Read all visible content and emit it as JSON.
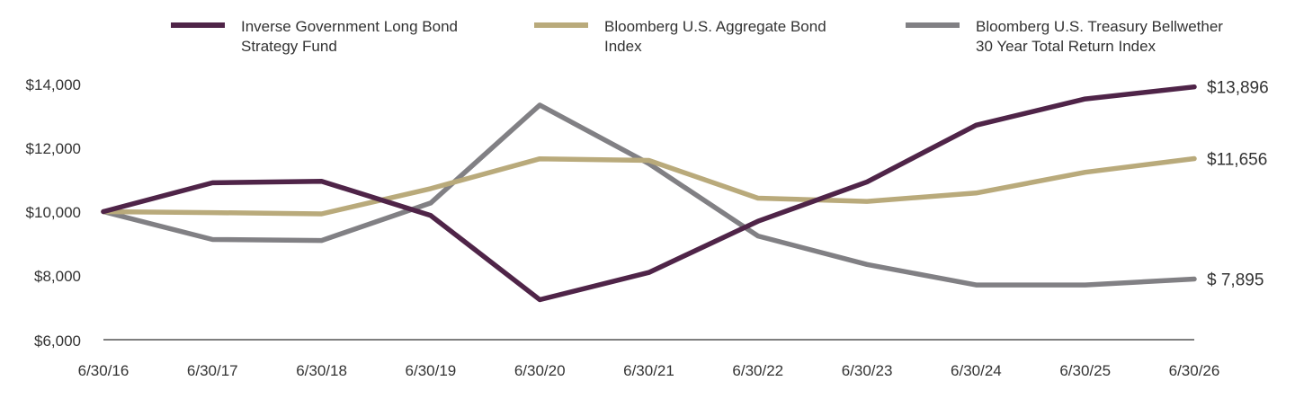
{
  "chart_data": {
    "type": "line",
    "x": [
      "6/30/16",
      "6/30/17",
      "6/30/18",
      "6/30/19",
      "6/30/20",
      "6/30/21",
      "6/30/22",
      "6/30/23",
      "6/30/24",
      "6/30/25",
      "6/30/26"
    ],
    "series": [
      {
        "name_lines": [
          "Inverse Government Long Bond",
          "Strategy Fund"
        ],
        "color": "#4f2448",
        "values": [
          10000,
          10900,
          10950,
          9880,
          7250,
          8100,
          9700,
          10930,
          12700,
          13520,
          13896
        ],
        "end_label": "$13,896"
      },
      {
        "name_lines": [
          "Bloomberg U.S. Aggregate Bond",
          "Index"
        ],
        "color": "#b9aa7b",
        "values": [
          10000,
          9970,
          9930,
          10720,
          11650,
          11600,
          10420,
          10320,
          10580,
          11230,
          11656
        ],
        "end_label": "$11,656"
      },
      {
        "name_lines": [
          "Bloomberg U.S. Treasury Bellwether",
          "30 Year Total Return Index"
        ],
        "color": "#818084",
        "values": [
          10000,
          9130,
          9100,
          10270,
          13330,
          11500,
          9240,
          8350,
          7710,
          7710,
          7895
        ],
        "end_label": "$  7,895"
      }
    ],
    "y_ticks": [
      "$14,000",
      "$12,000",
      "$10,000",
      "$8,000",
      "$6,000"
    ],
    "y_tick_values": [
      14000,
      12000,
      10000,
      8000,
      6000
    ],
    "ylim": [
      6000,
      14000
    ],
    "grid": false,
    "legend_position": "top"
  }
}
